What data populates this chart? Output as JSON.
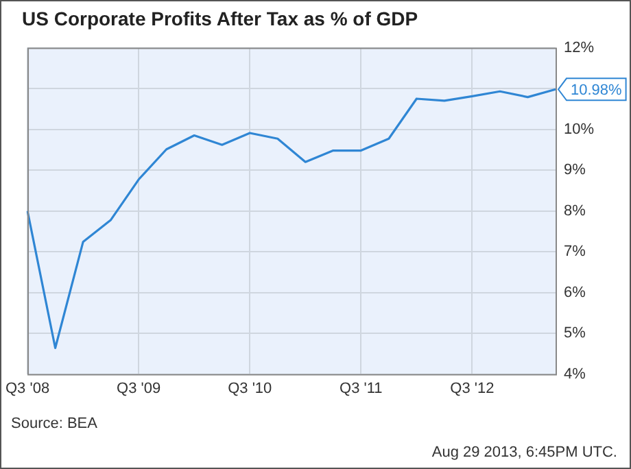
{
  "chart_data": {
    "type": "line",
    "title": "US Corporate Profits After Tax as % of GDP",
    "categories": [
      "Q3 '08",
      null,
      null,
      null,
      "Q3 '09",
      null,
      null,
      null,
      "Q3 '10",
      null,
      null,
      null,
      "Q3 '11",
      null,
      null,
      null,
      "Q3 '12",
      null,
      null,
      null
    ],
    "series": [
      {
        "color": "#2f86d4",
        "values": [
          8.0,
          4.64,
          7.24,
          7.78,
          8.77,
          9.51,
          9.85,
          9.62,
          9.91,
          9.77,
          9.2,
          9.48,
          9.48,
          9.77,
          10.75,
          10.7,
          10.81,
          10.93,
          10.79,
          10.98
        ]
      }
    ],
    "ylim": [
      4,
      12
    ],
    "yticks": [
      {
        "value": 4,
        "label": "4%"
      },
      {
        "value": 5,
        "label": "5%"
      },
      {
        "value": 6,
        "label": "6%"
      },
      {
        "value": 7,
        "label": "7%"
      },
      {
        "value": 8,
        "label": "8%"
      },
      {
        "value": 9,
        "label": "9%"
      },
      {
        "value": 10,
        "label": "10%"
      },
      {
        "value": 11,
        "label": null
      },
      {
        "value": 12,
        "label": "12%"
      }
    ],
    "grid": true,
    "legend": false,
    "marker": "none",
    "line_style": "solid",
    "annotations": [
      "10.98%",
      "Source: BEA",
      "Aug 29 2013, 6:45PM UTC."
    ]
  }
}
